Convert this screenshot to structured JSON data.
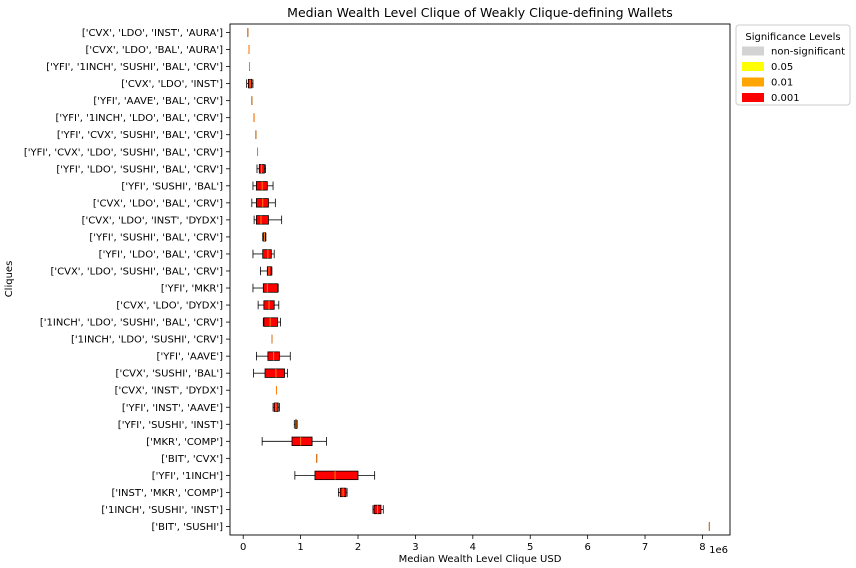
{
  "chart_data": {
    "type": "boxplot",
    "orientation": "horizontal",
    "title": "Median Wealth Level Clique of Weakly Clique-defining Wallets",
    "xlabel": "Median Wealth Level Clique USD",
    "ylabel": "Cliques",
    "x_multiplier_label": "1e6",
    "x_ticks": [
      "0",
      "1",
      "2",
      "3",
      "4",
      "5",
      "6",
      "7",
      "8"
    ],
    "x_tick_values": [
      0,
      1000000,
      2000000,
      3000000,
      4000000,
      5000000,
      6000000,
      7000000,
      8000000
    ],
    "xlim": [
      -230000,
      8480000
    ],
    "grid": false,
    "legend": {
      "title": "Significance Levels",
      "placement": "outside-top-right",
      "entries": [
        {
          "label": "non-significant",
          "color": "#d3d3d3"
        },
        {
          "label": "0.05",
          "color": "#ffff00"
        },
        {
          "label": "0.01",
          "color": "#ffa500"
        },
        {
          "label": "0.001",
          "color": "#ff0000"
        }
      ]
    },
    "median_line_color": "#ff7f0e",
    "categories": [
      "['CVX', 'LDO', 'INST', 'AURA']",
      "['CVX', 'LDO', 'BAL', 'AURA']",
      "['YFI', '1INCH', 'SUSHI', 'BAL', 'CRV']",
      "['CVX', 'LDO', 'INST']",
      "['YFI', 'AAVE', 'BAL', 'CRV']",
      "['YFI', '1INCH', 'LDO', 'BAL', 'CRV']",
      "['YFI', 'CVX', 'SUSHI', 'BAL', 'CRV']",
      "['YFI', 'CVX', 'LDO', 'SUSHI', 'BAL', 'CRV']",
      "['YFI', 'LDO', 'SUSHI', 'BAL', 'CRV']",
      "['YFI', 'SUSHI', 'BAL']",
      "['CVX', 'LDO', 'BAL', 'CRV']",
      "['CVX', 'LDO', 'INST', 'DYDX']",
      "['YFI', 'SUSHI', 'BAL', 'CRV']",
      "['YFI', 'LDO', 'BAL', 'CRV']",
      "['CVX', 'LDO', 'SUSHI', 'BAL', 'CRV']",
      "['YFI', 'MKR']",
      "['CVX', 'LDO', 'DYDX']",
      "['1INCH', 'LDO', 'SUSHI', 'BAL', 'CRV']",
      "['1INCH', 'LDO', 'SUSHI', 'CRV']",
      "['YFI', 'AAVE']",
      "['CVX', 'SUSHI', 'BAL']",
      "['CVX', 'INST', 'DYDX']",
      "['YFI', 'INST', 'AAVE']",
      "['YFI', 'SUSHI', 'INST']",
      "['MKR', 'COMP']",
      "['BIT', 'CVX']",
      "['YFI', '1INCH']",
      "['INST', 'MKR', 'COMP']",
      "['1INCH', 'SUSHI', 'INST']",
      "['BIT', 'SUSHI']"
    ],
    "boxes": [
      {
        "min": 80000,
        "q1": 80000,
        "median": 80000,
        "q3": 80000,
        "max": 80000,
        "significance": "0.001"
      },
      {
        "min": 100000,
        "q1": 100000,
        "median": 100000,
        "q3": 100000,
        "max": 100000,
        "significance": "0.001"
      },
      {
        "min": 110000,
        "q1": 110000,
        "median": 110000,
        "q3": 110000,
        "max": 110000,
        "significance": "0.001"
      },
      {
        "min": 60000,
        "q1": 90000,
        "median": 120000,
        "q3": 150000,
        "max": 170000,
        "significance": "0.001"
      },
      {
        "min": 150000,
        "q1": 150000,
        "median": 150000,
        "q3": 150000,
        "max": 150000,
        "significance": "0.001"
      },
      {
        "min": 190000,
        "q1": 190000,
        "median": 190000,
        "q3": 190000,
        "max": 190000,
        "significance": "0.001"
      },
      {
        "min": 220000,
        "q1": 220000,
        "median": 220000,
        "q3": 220000,
        "max": 220000,
        "significance": "0.001"
      },
      {
        "min": 250000,
        "q1": 250000,
        "median": 250000,
        "q3": 250000,
        "max": 250000,
        "significance": "0.001"
      },
      {
        "min": 240000,
        "q1": 280000,
        "median": 320000,
        "q3": 370000,
        "max": 390000,
        "significance": "0.001"
      },
      {
        "min": 170000,
        "q1": 230000,
        "median": 330000,
        "q3": 420000,
        "max": 520000,
        "significance": "0.001"
      },
      {
        "min": 150000,
        "q1": 230000,
        "median": 340000,
        "q3": 440000,
        "max": 560000,
        "significance": "0.001"
      },
      {
        "min": 190000,
        "q1": 230000,
        "median": 310000,
        "q3": 440000,
        "max": 670000,
        "significance": "0.001"
      },
      {
        "min": 340000,
        "q1": 355000,
        "median": 370000,
        "q3": 385000,
        "max": 395000,
        "significance": "0.001"
      },
      {
        "min": 170000,
        "q1": 340000,
        "median": 430000,
        "q3": 490000,
        "max": 540000,
        "significance": "0.001"
      },
      {
        "min": 300000,
        "q1": 420000,
        "median": 450000,
        "q3": 490000,
        "max": 500000,
        "significance": "0.001"
      },
      {
        "min": 170000,
        "q1": 350000,
        "median": 420000,
        "q3": 600000,
        "max": 610000,
        "significance": "0.001"
      },
      {
        "min": 260000,
        "q1": 360000,
        "median": 450000,
        "q3": 540000,
        "max": 620000,
        "significance": "0.001"
      },
      {
        "min": 350000,
        "q1": 360000,
        "median": 470000,
        "q3": 600000,
        "max": 650000,
        "significance": "0.001"
      },
      {
        "min": 500000,
        "q1": 500000,
        "median": 500000,
        "q3": 500000,
        "max": 500000,
        "significance": "0.001"
      },
      {
        "min": 230000,
        "q1": 430000,
        "median": 530000,
        "q3": 630000,
        "max": 820000,
        "significance": "0.001"
      },
      {
        "min": 180000,
        "q1": 380000,
        "median": 570000,
        "q3": 720000,
        "max": 770000,
        "significance": "0.001"
      },
      {
        "min": 580000,
        "q1": 580000,
        "median": 580000,
        "q3": 580000,
        "max": 580000,
        "significance": "0.001"
      },
      {
        "min": 520000,
        "q1": 540000,
        "median": 570000,
        "q3": 610000,
        "max": 630000,
        "significance": "0.001"
      },
      {
        "min": 890000,
        "q1": 910000,
        "median": 920000,
        "q3": 930000,
        "max": 940000,
        "significance": "0.001"
      },
      {
        "min": 330000,
        "q1": 850000,
        "median": 1000000,
        "q3": 1200000,
        "max": 1450000,
        "significance": "0.001"
      },
      {
        "min": 1280000,
        "q1": 1280000,
        "median": 1280000,
        "q3": 1280000,
        "max": 1280000,
        "significance": "0.001"
      },
      {
        "min": 900000,
        "q1": 1250000,
        "median": 1600000,
        "q3": 2000000,
        "max": 2290000,
        "significance": "0.001"
      },
      {
        "min": 1660000,
        "q1": 1690000,
        "median": 1740000,
        "q3": 1790000,
        "max": 1810000,
        "significance": "0.001"
      },
      {
        "min": 2260000,
        "q1": 2280000,
        "median": 2340000,
        "q3": 2400000,
        "max": 2440000,
        "significance": "0.001"
      },
      {
        "min": 8120000,
        "q1": 8120000,
        "median": 8120000,
        "q3": 8120000,
        "max": 8120000,
        "significance": "0.001"
      }
    ]
  }
}
